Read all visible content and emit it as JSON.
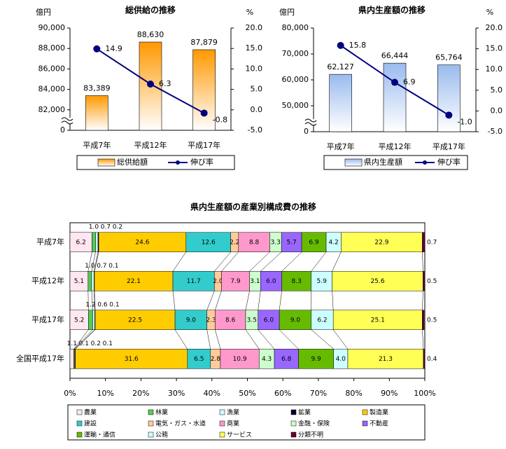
{
  "chart_data": [
    {
      "type": "bar",
      "title": "総供給の推移",
      "y_label": "億円",
      "y2_label": "%",
      "categories": [
        "平成7年",
        "平成12年",
        "平成17年"
      ],
      "series": [
        {
          "name": "総供給額",
          "color": "#ff9900",
          "values": [
            83389,
            88630,
            87879
          ],
          "value_labels": [
            "83,389",
            "88,630",
            "87,879"
          ]
        },
        {
          "name": "伸び率",
          "type": "line",
          "axis": "y2",
          "color": "#000080",
          "values": [
            14.9,
            6.3,
            -0.8
          ],
          "negative_label_color": "#ff0000"
        }
      ],
      "ylim": [
        80000,
        90000
      ],
      "axis_break": true,
      "yticks": [
        0,
        {
          "value": 82000,
          "label": "82,000"
        },
        {
          "value": 84000,
          "label": "84,000"
        },
        {
          "value": 86000,
          "label": "86,000"
        },
        {
          "value": 88000,
          "label": "88,000"
        },
        {
          "value": 90000,
          "label": "90,000"
        }
      ],
      "y2lim": [
        -5,
        20
      ],
      "y2ticks": [
        {
          "value": -5,
          "label": "-5.0"
        },
        {
          "value": 0,
          "label": "0.0"
        },
        {
          "value": 5,
          "label": "5.0"
        },
        {
          "value": 10,
          "label": "10.0"
        },
        {
          "value": 15,
          "label": "15.0"
        },
        {
          "value": 20,
          "label": "20.0"
        }
      ]
    },
    {
      "type": "bar",
      "title": "県内生産額の推移",
      "y_label": "億円",
      "y2_label": "%",
      "categories": [
        "平成7年",
        "平成12年",
        "平成17年"
      ],
      "series": [
        {
          "name": "県内生産額",
          "color": "#99bbee",
          "values": [
            62127,
            66444,
            65764
          ],
          "value_labels": [
            "62,127",
            "66,444",
            "65,764"
          ]
        },
        {
          "name": "伸び率",
          "type": "line",
          "axis": "y2",
          "color": "#000080",
          "values": [
            15.8,
            6.9,
            -1.0
          ],
          "value_labels": [
            "15.8",
            "6.9",
            "-1.0"
          ],
          "negative_label_color": "#ff0000"
        }
      ],
      "ylim": [
        40000,
        80000
      ],
      "axis_break": true,
      "yticks": [
        0,
        {
          "value": 50000,
          "label": "50,000"
        },
        {
          "value": 60000,
          "label": "60,000"
        },
        {
          "value": 70000,
          "label": "70,000"
        },
        {
          "value": 80000,
          "label": "80,000"
        }
      ],
      "y2lim": [
        -5,
        20
      ],
      "y2ticks": [
        {
          "value": -5,
          "label": "-5.0"
        },
        {
          "value": 0,
          "label": "0.0"
        },
        {
          "value": 5,
          "label": "5.0"
        },
        {
          "value": 10,
          "label": "10.0"
        },
        {
          "value": 15,
          "label": "15.0"
        },
        {
          "value": 20,
          "label": "20.0"
        }
      ]
    },
    {
      "type": "stacked_bar",
      "orientation": "horizontal",
      "title": "県内生産額の産業別構成費の推移",
      "categories": [
        "平成7年",
        "平成12年",
        "平成17年",
        "全国平成17年"
      ],
      "series": [
        {
          "name": "農業",
          "color": "#ffe6f0",
          "values": [
            6.2,
            5.1,
            5.2,
            1.1
          ],
          "value_labels": [
            "6.2",
            "5.1",
            "5.2",
            "1.1"
          ]
        },
        {
          "name": "林業",
          "color": "#55cc55",
          "values": [
            1.0,
            1.0,
            1.2,
            0.1
          ],
          "value_labels": [
            "1.0",
            "1.0",
            "1.2",
            "0.1"
          ]
        },
        {
          "name": "漁業",
          "color": "#ccffff",
          "values": [
            0.7,
            0.7,
            0.6,
            0.2
          ],
          "value_labels": [
            "0.7",
            "0.7",
            "0.6",
            "0.2"
          ]
        },
        {
          "name": "鉱業",
          "color": "#000033",
          "values": [
            0.2,
            0.1,
            0.1,
            0.1
          ],
          "value_labels": [
            "0.2",
            "0.1",
            "0.1",
            "0.1"
          ]
        },
        {
          "name": "製造業",
          "color": "#ffcc00",
          "values": [
            24.6,
            22.1,
            22.5,
            31.6
          ],
          "value_labels": [
            "24.6",
            "22.1",
            "22.5",
            "31.6"
          ]
        },
        {
          "name": "建設",
          "color": "#33cccc",
          "values": [
            12.6,
            11.7,
            9.0,
            6.5
          ],
          "value_labels": [
            "12.6",
            "11.7",
            "9.0",
            "6.5"
          ]
        },
        {
          "name": "電気・ガス・水道",
          "color": "#ffcc99",
          "values": [
            2.2,
            2.0,
            2.3,
            2.8
          ],
          "value_labels": [
            "2.2",
            "2.0",
            "2.3",
            "2.8"
          ]
        },
        {
          "name": "商業",
          "color": "#ff99cc",
          "values": [
            8.8,
            7.9,
            8.6,
            10.9
          ],
          "value_labels": [
            "8.8",
            "7.9",
            "8.6",
            "10.9"
          ]
        },
        {
          "name": "金融・保険",
          "color": "#ccffcc",
          "values": [
            3.3,
            3.1,
            3.5,
            4.3
          ],
          "value_labels": [
            "3.3",
            "3.1",
            "3.5",
            "4.3"
          ]
        },
        {
          "name": "不動産",
          "color": "#9966ff",
          "values": [
            5.7,
            6.0,
            6.0,
            6.8
          ],
          "value_labels": [
            "5.7",
            "6.0",
            "6.0",
            "6.8"
          ]
        },
        {
          "name": "運輸・通信",
          "color": "#66bb00",
          "values": [
            6.9,
            8.3,
            9.0,
            9.9
          ],
          "value_labels": [
            "6.9",
            "8.3",
            "9.0",
            "9.9"
          ]
        },
        {
          "name": "公務",
          "color": "#ccffff",
          "values": [
            4.2,
            5.9,
            6.2,
            4.0
          ],
          "value_labels": [
            "4.2",
            "5.9",
            "6.2",
            "4.0"
          ]
        },
        {
          "name": "サービス",
          "color": "#ffff55",
          "values": [
            22.9,
            25.6,
            25.1,
            21.3
          ],
          "value_labels": [
            "22.9",
            "25.6",
            "25.1",
            "21.3"
          ]
        },
        {
          "name": "分類不明",
          "color": "#660033",
          "values": [
            0.7,
            0.5,
            0.5,
            0.4
          ],
          "value_labels": [
            "0.7",
            "0.5",
            "0.5",
            "0.4"
          ]
        }
      ],
      "xlim": [
        0,
        100
      ],
      "xticks": [
        {
          "value": 0,
          "label": "0%"
        },
        {
          "value": 10,
          "label": "10%"
        },
        {
          "value": 20,
          "label": "20%"
        },
        {
          "value": 30,
          "label": "30%"
        },
        {
          "value": 40,
          "label": "40%"
        },
        {
          "value": 50,
          "label": "50%"
        },
        {
          "value": 60,
          "label": "60%"
        },
        {
          "value": 70,
          "label": "70%"
        },
        {
          "value": 80,
          "label": "80%"
        },
        {
          "value": 90,
          "label": "90%"
        },
        {
          "value": 100,
          "label": "100%"
        }
      ]
    }
  ]
}
